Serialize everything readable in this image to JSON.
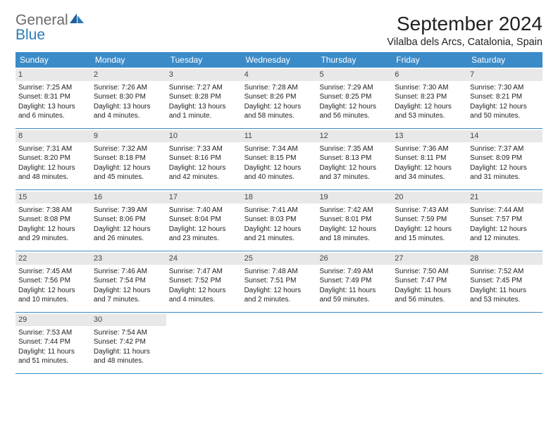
{
  "logo": {
    "general": "General",
    "blue": "Blue"
  },
  "title": "September 2024",
  "location": "Vilalba dels Arcs, Catalonia, Spain",
  "colors": {
    "header_bg": "#3b8bc8",
    "header_text": "#ffffff",
    "daynum_bg": "#e8e8e8",
    "row_border": "#3b8bc8",
    "logo_gray": "#6a6a6a",
    "logo_blue": "#2a7bb8"
  },
  "weekdays": [
    "Sunday",
    "Monday",
    "Tuesday",
    "Wednesday",
    "Thursday",
    "Friday",
    "Saturday"
  ],
  "weeks": [
    [
      {
        "n": "1",
        "sunrise": "Sunrise: 7:25 AM",
        "sunset": "Sunset: 8:31 PM",
        "day": "Daylight: 13 hours and 6 minutes."
      },
      {
        "n": "2",
        "sunrise": "Sunrise: 7:26 AM",
        "sunset": "Sunset: 8:30 PM",
        "day": "Daylight: 13 hours and 4 minutes."
      },
      {
        "n": "3",
        "sunrise": "Sunrise: 7:27 AM",
        "sunset": "Sunset: 8:28 PM",
        "day": "Daylight: 13 hours and 1 minute."
      },
      {
        "n": "4",
        "sunrise": "Sunrise: 7:28 AM",
        "sunset": "Sunset: 8:26 PM",
        "day": "Daylight: 12 hours and 58 minutes."
      },
      {
        "n": "5",
        "sunrise": "Sunrise: 7:29 AM",
        "sunset": "Sunset: 8:25 PM",
        "day": "Daylight: 12 hours and 56 minutes."
      },
      {
        "n": "6",
        "sunrise": "Sunrise: 7:30 AM",
        "sunset": "Sunset: 8:23 PM",
        "day": "Daylight: 12 hours and 53 minutes."
      },
      {
        "n": "7",
        "sunrise": "Sunrise: 7:30 AM",
        "sunset": "Sunset: 8:21 PM",
        "day": "Daylight: 12 hours and 50 minutes."
      }
    ],
    [
      {
        "n": "8",
        "sunrise": "Sunrise: 7:31 AM",
        "sunset": "Sunset: 8:20 PM",
        "day": "Daylight: 12 hours and 48 minutes."
      },
      {
        "n": "9",
        "sunrise": "Sunrise: 7:32 AM",
        "sunset": "Sunset: 8:18 PM",
        "day": "Daylight: 12 hours and 45 minutes."
      },
      {
        "n": "10",
        "sunrise": "Sunrise: 7:33 AM",
        "sunset": "Sunset: 8:16 PM",
        "day": "Daylight: 12 hours and 42 minutes."
      },
      {
        "n": "11",
        "sunrise": "Sunrise: 7:34 AM",
        "sunset": "Sunset: 8:15 PM",
        "day": "Daylight: 12 hours and 40 minutes."
      },
      {
        "n": "12",
        "sunrise": "Sunrise: 7:35 AM",
        "sunset": "Sunset: 8:13 PM",
        "day": "Daylight: 12 hours and 37 minutes."
      },
      {
        "n": "13",
        "sunrise": "Sunrise: 7:36 AM",
        "sunset": "Sunset: 8:11 PM",
        "day": "Daylight: 12 hours and 34 minutes."
      },
      {
        "n": "14",
        "sunrise": "Sunrise: 7:37 AM",
        "sunset": "Sunset: 8:09 PM",
        "day": "Daylight: 12 hours and 31 minutes."
      }
    ],
    [
      {
        "n": "15",
        "sunrise": "Sunrise: 7:38 AM",
        "sunset": "Sunset: 8:08 PM",
        "day": "Daylight: 12 hours and 29 minutes."
      },
      {
        "n": "16",
        "sunrise": "Sunrise: 7:39 AM",
        "sunset": "Sunset: 8:06 PM",
        "day": "Daylight: 12 hours and 26 minutes."
      },
      {
        "n": "17",
        "sunrise": "Sunrise: 7:40 AM",
        "sunset": "Sunset: 8:04 PM",
        "day": "Daylight: 12 hours and 23 minutes."
      },
      {
        "n": "18",
        "sunrise": "Sunrise: 7:41 AM",
        "sunset": "Sunset: 8:03 PM",
        "day": "Daylight: 12 hours and 21 minutes."
      },
      {
        "n": "19",
        "sunrise": "Sunrise: 7:42 AM",
        "sunset": "Sunset: 8:01 PM",
        "day": "Daylight: 12 hours and 18 minutes."
      },
      {
        "n": "20",
        "sunrise": "Sunrise: 7:43 AM",
        "sunset": "Sunset: 7:59 PM",
        "day": "Daylight: 12 hours and 15 minutes."
      },
      {
        "n": "21",
        "sunrise": "Sunrise: 7:44 AM",
        "sunset": "Sunset: 7:57 PM",
        "day": "Daylight: 12 hours and 12 minutes."
      }
    ],
    [
      {
        "n": "22",
        "sunrise": "Sunrise: 7:45 AM",
        "sunset": "Sunset: 7:56 PM",
        "day": "Daylight: 12 hours and 10 minutes."
      },
      {
        "n": "23",
        "sunrise": "Sunrise: 7:46 AM",
        "sunset": "Sunset: 7:54 PM",
        "day": "Daylight: 12 hours and 7 minutes."
      },
      {
        "n": "24",
        "sunrise": "Sunrise: 7:47 AM",
        "sunset": "Sunset: 7:52 PM",
        "day": "Daylight: 12 hours and 4 minutes."
      },
      {
        "n": "25",
        "sunrise": "Sunrise: 7:48 AM",
        "sunset": "Sunset: 7:51 PM",
        "day": "Daylight: 12 hours and 2 minutes."
      },
      {
        "n": "26",
        "sunrise": "Sunrise: 7:49 AM",
        "sunset": "Sunset: 7:49 PM",
        "day": "Daylight: 11 hours and 59 minutes."
      },
      {
        "n": "27",
        "sunrise": "Sunrise: 7:50 AM",
        "sunset": "Sunset: 7:47 PM",
        "day": "Daylight: 11 hours and 56 minutes."
      },
      {
        "n": "28",
        "sunrise": "Sunrise: 7:52 AM",
        "sunset": "Sunset: 7:45 PM",
        "day": "Daylight: 11 hours and 53 minutes."
      }
    ],
    [
      {
        "n": "29",
        "sunrise": "Sunrise: 7:53 AM",
        "sunset": "Sunset: 7:44 PM",
        "day": "Daylight: 11 hours and 51 minutes."
      },
      {
        "n": "30",
        "sunrise": "Sunrise: 7:54 AM",
        "sunset": "Sunset: 7:42 PM",
        "day": "Daylight: 11 hours and 48 minutes."
      },
      null,
      null,
      null,
      null,
      null
    ]
  ]
}
